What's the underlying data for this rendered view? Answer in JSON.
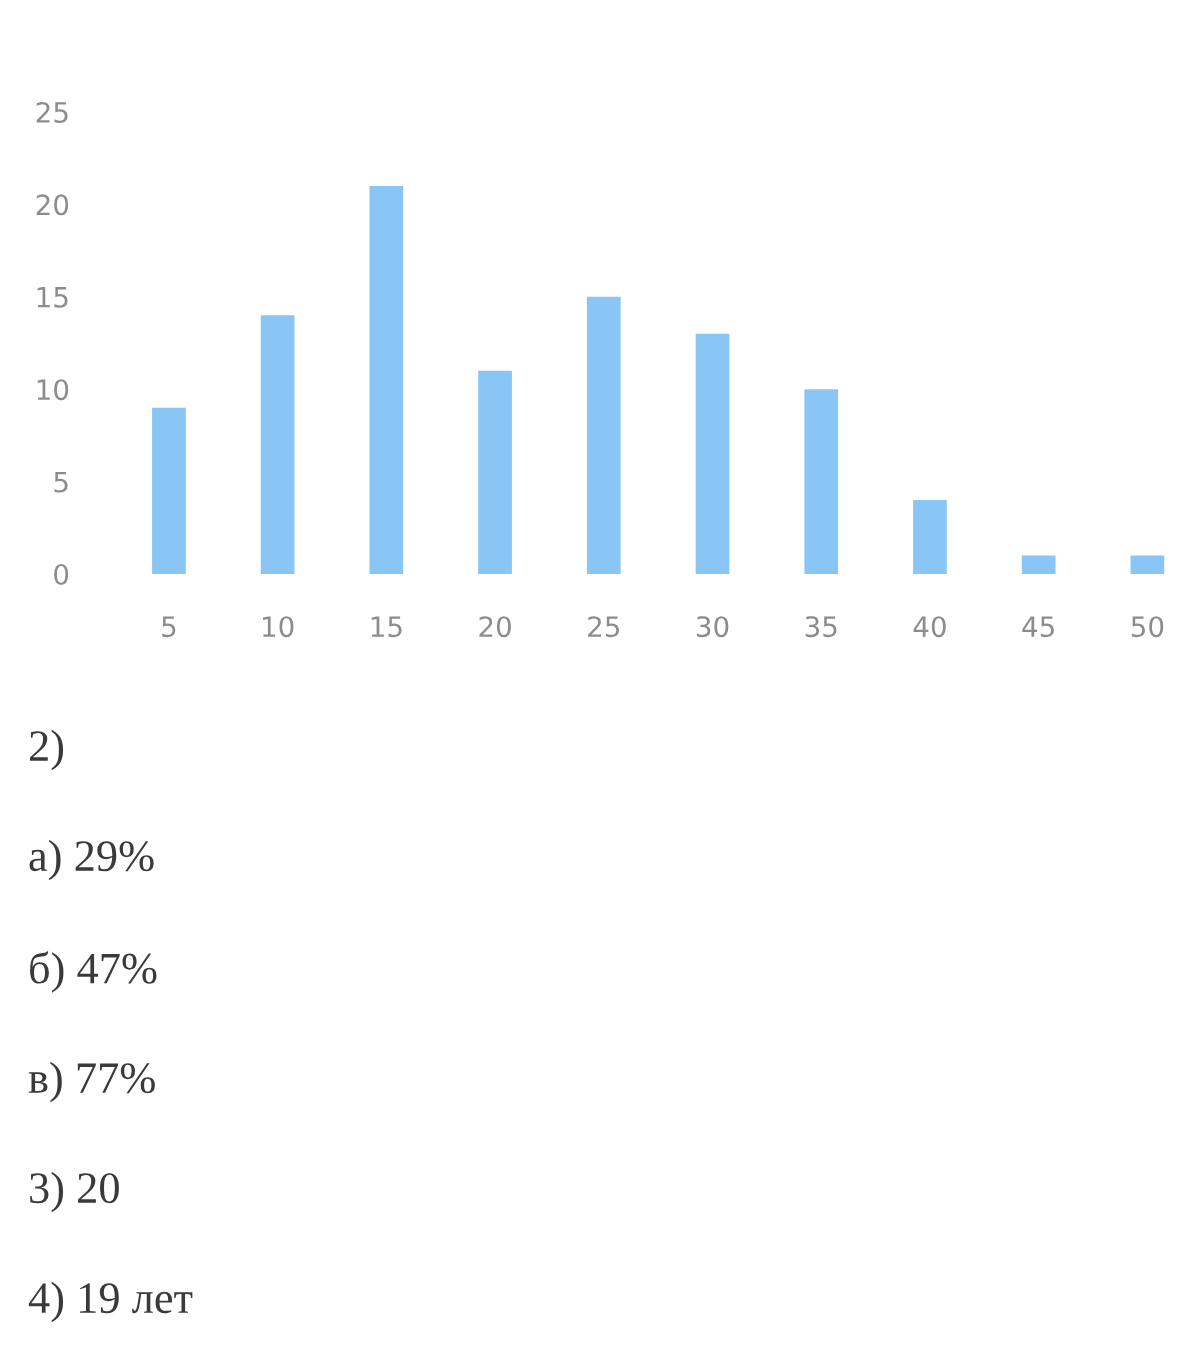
{
  "chart_data": {
    "type": "bar",
    "categories": [
      "5",
      "10",
      "15",
      "20",
      "25",
      "30",
      "35",
      "40",
      "45",
      "50"
    ],
    "values": [
      9,
      14,
      21,
      11,
      15,
      13,
      10,
      4,
      1,
      1
    ],
    "color": "#8ac6f5",
    "ylim": [
      0,
      25
    ],
    "yticks": [
      0,
      5,
      10,
      15,
      20,
      25
    ],
    "annotations": [
      "2)",
      "а) 29%",
      "б) 47%",
      "в) 77%",
      "3) 20",
      "4) 19 лет"
    ]
  }
}
